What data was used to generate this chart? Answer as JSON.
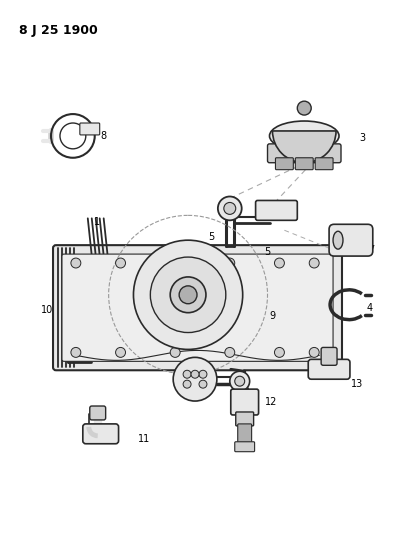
{
  "title": "8 J 25 1900",
  "background_color": "#ffffff",
  "line_color": "#2a2a2a",
  "label_fontsize": 7,
  "figsize": [
    3.98,
    5.33
  ],
  "dpi": 100
}
